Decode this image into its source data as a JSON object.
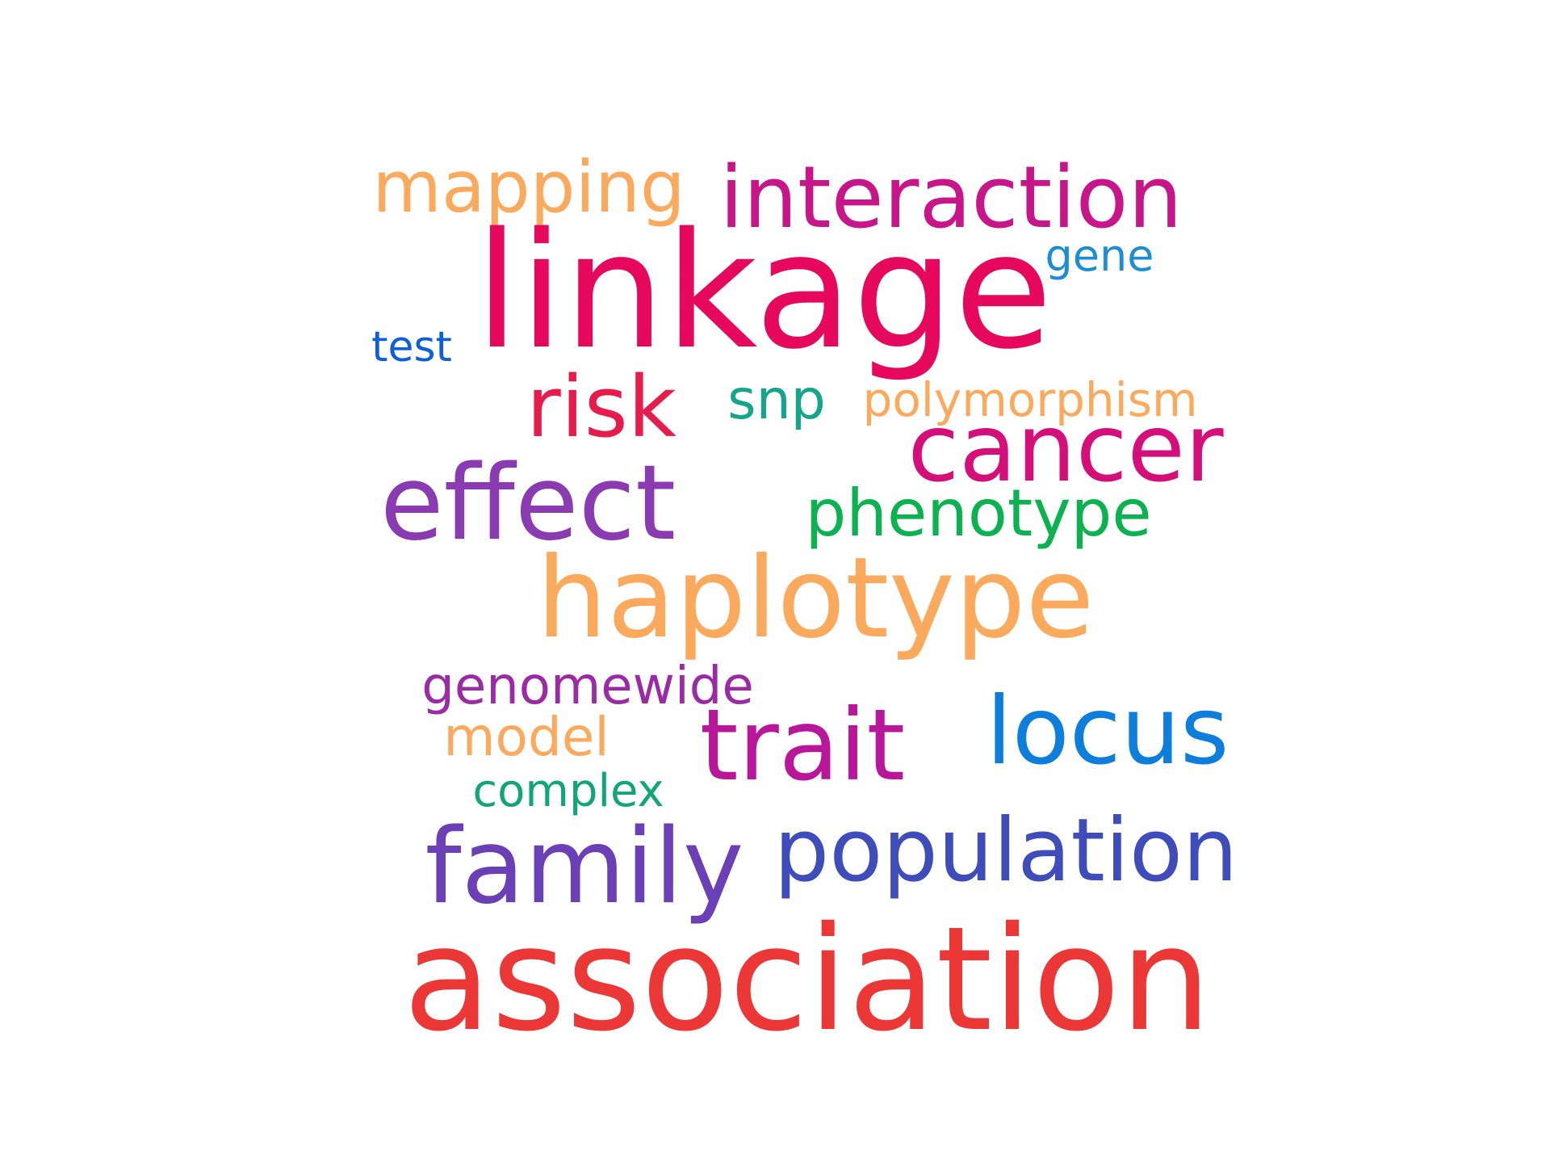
{
  "words": {
    "mapping": {
      "text": "mapping",
      "color": "#fba95d"
    },
    "interaction": {
      "text": "interaction",
      "color": "#c7168a"
    },
    "linkage": {
      "text": "linkage",
      "color": "#e5085d"
    },
    "gene": {
      "text": "gene",
      "color": "#1d8ed3"
    },
    "test": {
      "text": "test",
      "color": "#0c5fd8"
    },
    "risk": {
      "text": "risk",
      "color": "#e51c4c"
    },
    "snp": {
      "text": "snp",
      "color": "#14a58b"
    },
    "polymorphism": {
      "text": "polymorphism",
      "color": "#fba95d"
    },
    "cancer": {
      "text": "cancer",
      "color": "#d50f7a"
    },
    "effect": {
      "text": "effect",
      "color": "#8a3bb1"
    },
    "phenotype": {
      "text": "phenotype",
      "color": "#0bb24f"
    },
    "haplotype": {
      "text": "haplotype",
      "color": "#fba95d"
    },
    "genomewide": {
      "text": "genomewide",
      "color": "#9b2aa5"
    },
    "model": {
      "text": "model",
      "color": "#fba95d"
    },
    "trait": {
      "text": "trait",
      "color": "#b8179a"
    },
    "locus": {
      "text": "locus",
      "color": "#0d7edc"
    },
    "complex": {
      "text": "complex",
      "color": "#12a57a"
    },
    "family": {
      "text": "family",
      "color": "#6b3fb5"
    },
    "population": {
      "text": "population",
      "color": "#3f4dbb"
    },
    "association": {
      "text": "association",
      "color": "#eb3836"
    }
  }
}
